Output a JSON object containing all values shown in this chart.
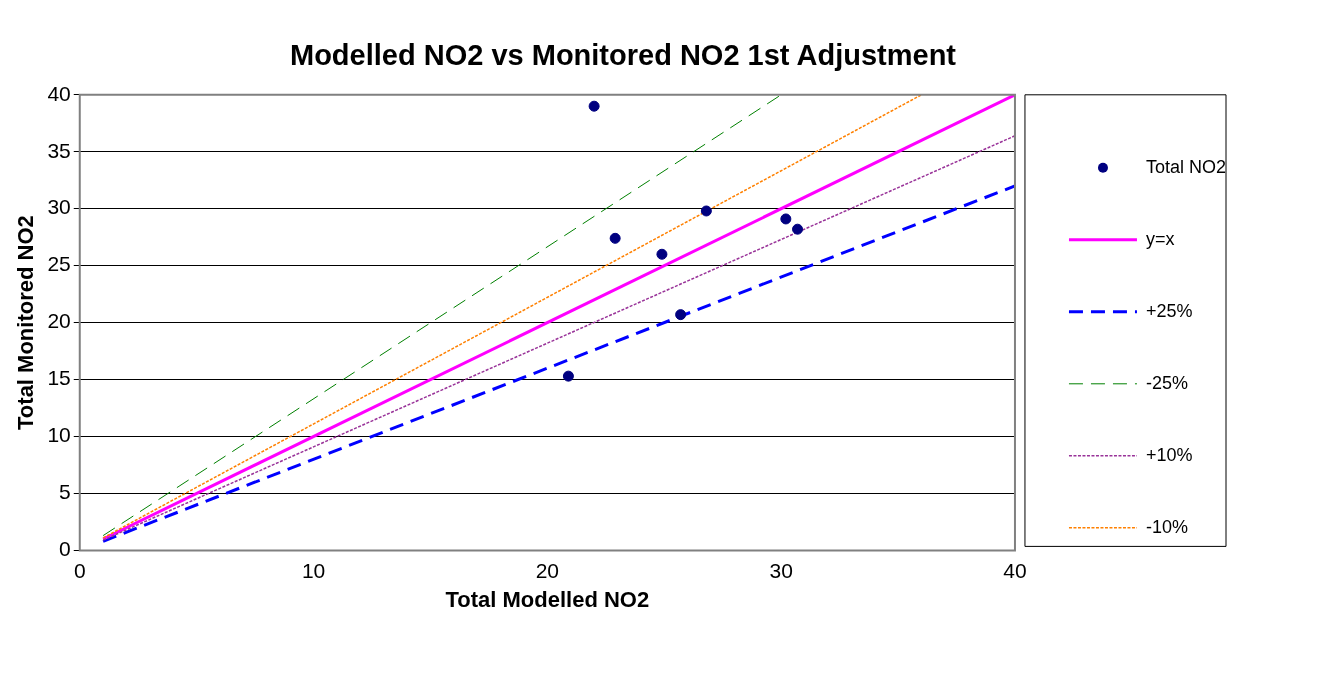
{
  "chart_data": {
    "type": "scatter",
    "title": "Modelled NO2 vs Monitored NO2 1st Adjustment",
    "xlabel": "Total Modelled NO2",
    "ylabel": "Total Monitored NO2",
    "xlim": [
      0,
      40
    ],
    "xticks": [
      0,
      10,
      20,
      30,
      40
    ],
    "ylim": [
      0,
      40
    ],
    "yticks": [
      0,
      5,
      10,
      15,
      20,
      25,
      30,
      35,
      40
    ],
    "grid": "y",
    "legend": "right",
    "series": [
      {
        "name": "Total NO2",
        "type": "scatter",
        "color": "#000080",
        "marker": "circle",
        "x": [
          22.0,
          22.9,
          24.9,
          26.8,
          25.7,
          30.2,
          30.7,
          20.9
        ],
        "values": [
          39.0,
          27.4,
          26.0,
          29.8,
          20.7,
          29.1,
          28.2,
          15.3
        ]
      },
      {
        "name": "y=x",
        "type": "line",
        "color": "#ff00ff",
        "marker": "none",
        "line_style": "solid",
        "x": [
          1,
          40
        ],
        "values": [
          1,
          40
        ]
      },
      {
        "name": "+25%",
        "type": "line",
        "color": "#0000ff",
        "marker": "none",
        "line_style": "dashed",
        "x": [
          1,
          40
        ],
        "values": [
          0.8,
          32
        ]
      },
      {
        "name": "-25%",
        "type": "line",
        "color": "#008000",
        "marker": "none",
        "line_style": "dashed",
        "x": [
          1,
          30
        ],
        "values": [
          1.3,
          40
        ]
      },
      {
        "name": "+10%",
        "type": "line",
        "color": "#993399",
        "marker": "none",
        "line_style": "dotted",
        "x": [
          1,
          40
        ],
        "values": [
          0.9,
          36.4
        ]
      },
      {
        "name": "-10%",
        "type": "line",
        "color": "#ff8000",
        "marker": "none",
        "line_style": "dotted",
        "x": [
          1,
          36
        ],
        "values": [
          1.1,
          40
        ]
      }
    ]
  }
}
